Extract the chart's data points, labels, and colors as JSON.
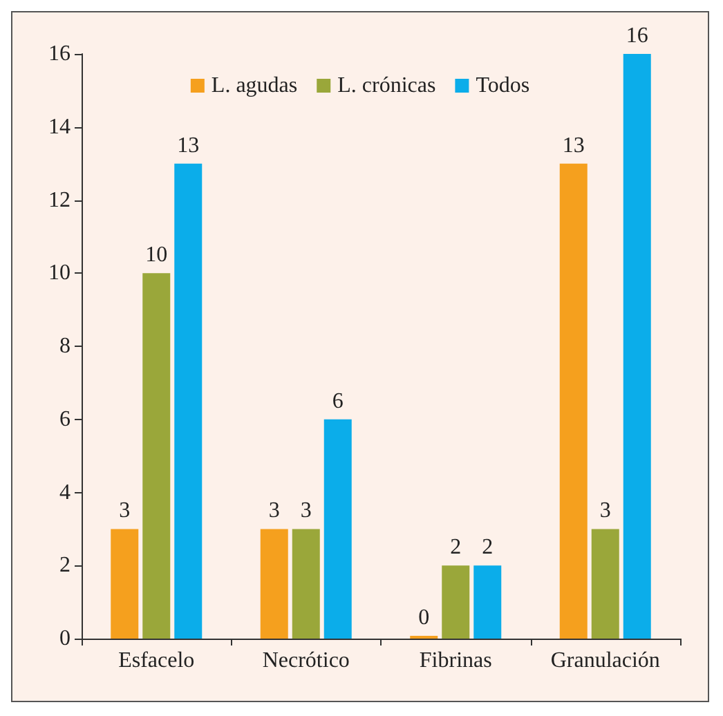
{
  "chart_data": {
    "type": "bar",
    "categories": [
      "Esfacelo",
      "Necrótico",
      "Fibrinas",
      "Granulación"
    ],
    "series": [
      {
        "name": "L. agudas",
        "color": "#f5a01e",
        "values": [
          3,
          3,
          0,
          13
        ]
      },
      {
        "name": "L. crónicas",
        "color": "#9aa73a",
        "values": [
          10,
          3,
          2,
          3
        ]
      },
      {
        "name": "Todos",
        "color": "#0badea",
        "values": [
          13,
          6,
          2,
          16
        ]
      }
    ],
    "ylim": [
      0,
      16
    ],
    "yticks": [
      0,
      2,
      4,
      6,
      8,
      10,
      12,
      14,
      16
    ],
    "grid": false,
    "legend": "top",
    "data_labels": true
  }
}
